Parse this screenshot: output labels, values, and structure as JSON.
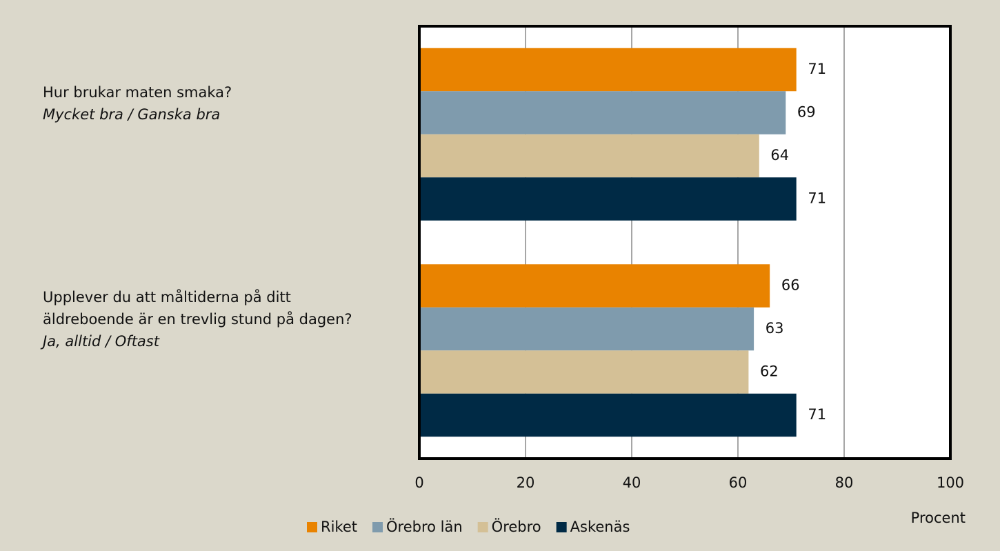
{
  "chart_data": {
    "type": "hbar",
    "categories": [
      "Hur brukar maten smaka?",
      "Upplever du att måltiderna på ditt äldreboende är en trevlig stund på dagen?"
    ],
    "category_subtitles": [
      "Mycket bra / Ganska bra",
      "Ja, alltid / Oftast"
    ],
    "series": [
      {
        "name": "Riket",
        "color": "#e98300",
        "values": [
          71,
          66
        ]
      },
      {
        "name": "Örebro län",
        "color": "#7f9bad",
        "values": [
          69,
          63
        ]
      },
      {
        "name": "Örebro",
        "color": "#d4c096",
        "values": [
          64,
          62
        ]
      },
      {
        "name": "Askenäs",
        "color": "#002a45",
        "values": [
          71,
          71
        ]
      }
    ],
    "x_label": "Procent",
    "xlim": [
      0,
      100
    ],
    "xticks": [
      0,
      20,
      40,
      60,
      80,
      100
    ],
    "grid": true
  }
}
